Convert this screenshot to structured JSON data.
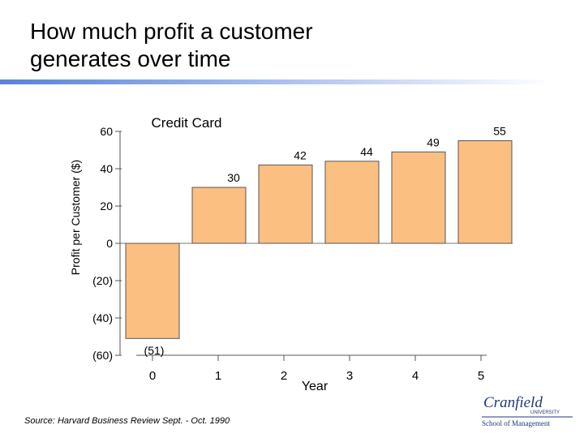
{
  "title": "How much profit a customer\ngenerates over time",
  "source": "Source: Harvard Business Review Sept. - Oct. 1990",
  "colors": {
    "bar": "#fbbf82",
    "bar_border": "#555555",
    "accent": "#5a82d8",
    "logo": "#1f3a7a"
  },
  "chart_data": {
    "type": "bar",
    "title": "Credit Card",
    "xlabel": "Year",
    "ylabel": "Profit per Customer ($)",
    "categories": [
      "0",
      "1",
      "2",
      "3",
      "4",
      "5"
    ],
    "values": [
      -51,
      30,
      42,
      44,
      49,
      55
    ],
    "data_labels": [
      "(51)",
      "30",
      "42",
      "44",
      "49",
      "55"
    ],
    "ylim": [
      -60,
      60
    ],
    "yticks": [
      60,
      40,
      20,
      0,
      -20,
      -40,
      -60
    ],
    "ytick_labels": [
      "60",
      "40",
      "20",
      "0",
      "(20)",
      "(40)",
      "(60)"
    ]
  },
  "logo": {
    "name": "Cranfield",
    "line2": "UNIVERSITY",
    "line3": "School of Management"
  }
}
